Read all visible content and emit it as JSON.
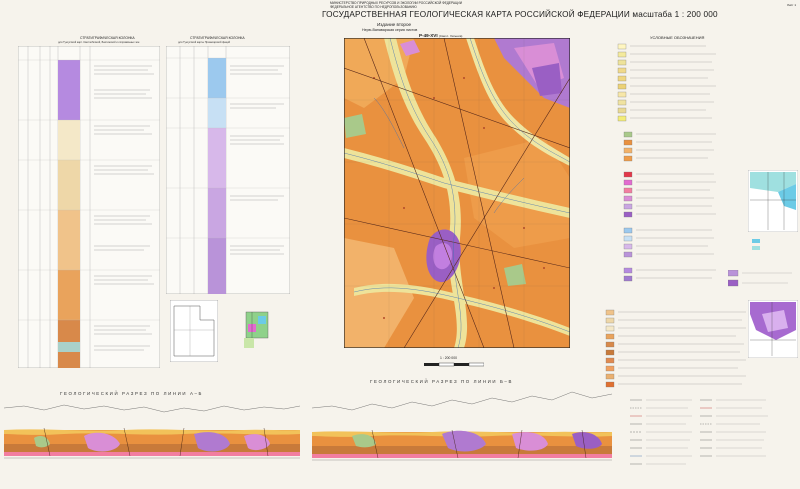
{
  "header": {
    "ministry_line1": "МИНИСТЕРСТВО ПРИРОДНЫХ РЕСУРСОВ И ЭКОЛОГИИ РОССИЙСКОЙ ФЕДЕРАЦИИ",
    "ministry_line2": "ФЕДЕРАЛЬНОЕ АГЕНТСТВО ПО НЕДРОПОЛЬЗОВАНИЮ",
    "title": "ГОСУДАРСТВЕННАЯ ГЕОЛОГИЧЕСКАЯ КАРТА РОССИЙСКОЙ ФЕДЕРАЦИИ масштаба 1 : 200 000",
    "edition": "Издание второе",
    "series": "Нерю-Ванаварская серия листов",
    "sheet_no": "P-49-XVI",
    "sheet_name": "(Светл. Хатынга)",
    "corner_label": "Лист 1"
  },
  "columns": {
    "left_title": "СТРАТИГРАФИЧЕСКАЯ КОЛОНКА",
    "left_subtitle": "для Тунгусской карт. Светлобсокой, Бахтинской и сопряжённых зон",
    "mid_title": "СТРАТИГРАФИЧЕСКАЯ КОЛОНКА",
    "mid_subtitle": "для Тунгусской карты Приангарской фаций"
  },
  "legend": {
    "title": "УСЛОВНЫЕ ОБОЗНАЧЕНИЯ"
  },
  "sections": {
    "left": "ГЕОЛОГИЧЕСКИЙ РАЗРЕЗ ПО ЛИНИИ А–Б",
    "right": "ГЕОЛОГИЧЕСКИЙ РАЗРЕЗ ПО ЛИНИИ Б–В"
  },
  "map": {
    "scale_label": "1 : 200 000",
    "colors": {
      "orange": "#e9913f",
      "light_orange": "#f2b26a",
      "yellow": "#eee39a",
      "purple": "#9a5fc4",
      "pink": "#d98ed6",
      "green": "#a9c98a"
    }
  }
}
